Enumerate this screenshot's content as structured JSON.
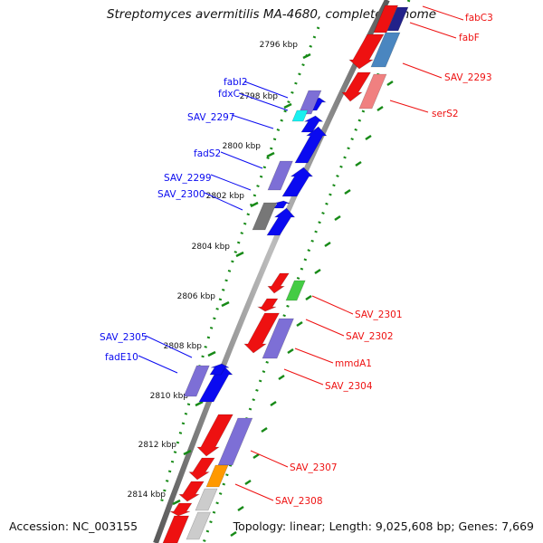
{
  "title": "Streptomyces avermitilis MA-4680, complete genome",
  "footer": {
    "accession": "Accession: NC_003155",
    "summary": "Topology: linear; Length: 9,025,608 bp; Genes: 7,669"
  },
  "colors": {
    "forward_gene": "#0a0af0",
    "reverse_gene": "#ee1111",
    "cog_purple": "#7d6fd6",
    "cog_cyan": "#19f0f0",
    "cog_gray": "#777777",
    "cog_green": "#44cc44",
    "cog_orange": "#ff9900",
    "cog_light": "#cccccc",
    "cog_pink": "#f08080",
    "cog_steel": "#4a86c0",
    "cog_navy": "#22228a",
    "tick_green": "#178a17",
    "backbone": "#888888"
  },
  "ticks": [
    {
      "label": "2796 kbp",
      "kbp": 2796
    },
    {
      "label": "2798 kbp",
      "kbp": 2798
    },
    {
      "label": "2800 kbp",
      "kbp": 2800
    },
    {
      "label": "2802 kbp",
      "kbp": 2802
    },
    {
      "label": "2804 kbp",
      "kbp": 2804
    },
    {
      "label": "2806 kbp",
      "kbp": 2806
    },
    {
      "label": "2808 kbp",
      "kbp": 2808
    },
    {
      "label": "2810 kbp",
      "kbp": 2810
    },
    {
      "label": "2812 kbp",
      "kbp": 2812
    },
    {
      "label": "2814 kbp",
      "kbp": 2814
    }
  ],
  "left_labels": [
    "fabI2",
    "fdxC",
    "SAV_2297",
    "fadS2",
    "SAV_2299",
    "SAV_2300",
    "SAV_2305",
    "fadE10"
  ],
  "right_labels": [
    "fabC3",
    "fabF",
    "SAV_2293",
    "serS2",
    "SAV_2301",
    "SAV_2302",
    "mmdA1",
    "SAV_2304",
    "SAV_2307",
    "SAV_2308"
  ]
}
